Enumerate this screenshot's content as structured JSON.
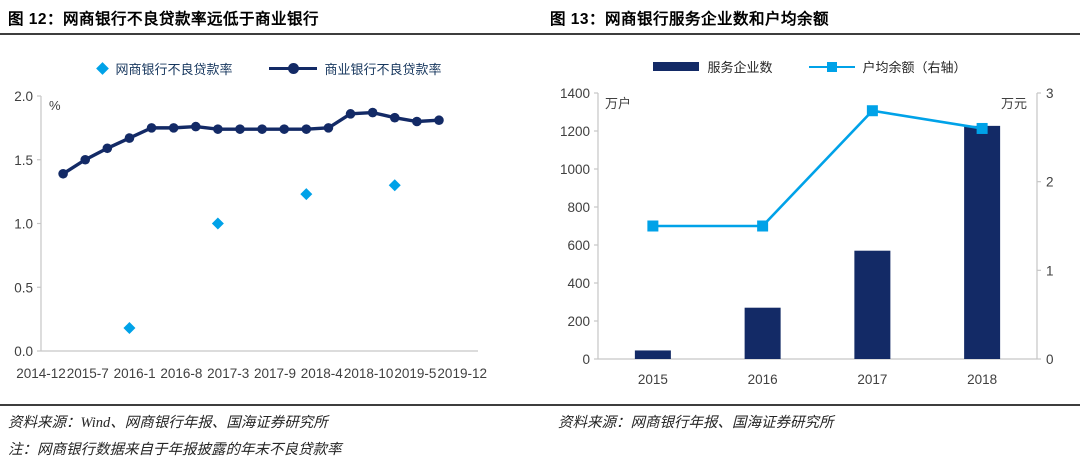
{
  "colors": {
    "navy": "#132A66",
    "cyan": "#00A2E8",
    "axis_text": "#404040",
    "axis_line": "#C6C6C6",
    "rule": "#3d3d3d",
    "legend_text_left": "#17375E",
    "legend_text_right": "#262626"
  },
  "panels": {
    "left": {
      "title": "图 12：网商银行不良贷款率远低于商业银行",
      "legend": [
        {
          "label": "网商银行不良贷款率",
          "swatch": "diamond"
        },
        {
          "label": "商业银行不良贷款率",
          "swatch": "line-dot"
        }
      ],
      "unit_label": "%",
      "source": "资料来源：Wind、网商银行年报、国海证券研究所",
      "note": "注：网商银行数据来自于年报披露的年末不良贷款率"
    },
    "right": {
      "title": "图 13：网商银行服务企业数和户均余额",
      "legend": [
        {
          "label": "服务企业数",
          "swatch": "bar"
        },
        {
          "label": "户均余额（右轴）",
          "swatch": "line-square"
        }
      ],
      "left_unit_label": "万户",
      "right_unit_label": "万元",
      "source": "资料来源：网商银行年报、国海证券研究所"
    }
  },
  "chart_data": [
    {
      "id": "npl-comparison",
      "type": "line",
      "title": "图 12：网商银行不良贷款率远低于商业银行",
      "ylabel": "%",
      "ylim": [
        0.0,
        2.0
      ],
      "yticks": [
        0.0,
        0.5,
        1.0,
        1.5,
        2.0
      ],
      "xticks": [
        "2014-12",
        "2015-7",
        "2016-1",
        "2016-8",
        "2017-3",
        "2017-9",
        "2018-4",
        "2018-10",
        "2019-5",
        "2019-12"
      ],
      "grid": false,
      "legend_position": "top",
      "series": [
        {
          "name": "网商银行不良贷款率",
          "type": "scatter",
          "marker": "diamond",
          "axis": "left",
          "points": [
            {
              "date": "2015-12",
              "value": 0.18
            },
            {
              "date": "2016-12",
              "value": 1.0
            },
            {
              "date": "2017-12",
              "value": 1.23
            },
            {
              "date": "2018-12",
              "value": 1.3
            }
          ]
        },
        {
          "name": "商业银行不良贷款率",
          "type": "line",
          "marker": "circle",
          "axis": "left",
          "points": [
            {
              "date": "2015-03",
              "value": 1.39
            },
            {
              "date": "2015-06",
              "value": 1.5
            },
            {
              "date": "2015-09",
              "value": 1.59
            },
            {
              "date": "2015-12",
              "value": 1.67
            },
            {
              "date": "2016-03",
              "value": 1.75
            },
            {
              "date": "2016-06",
              "value": 1.75
            },
            {
              "date": "2016-09",
              "value": 1.76
            },
            {
              "date": "2016-12",
              "value": 1.74
            },
            {
              "date": "2017-03",
              "value": 1.74
            },
            {
              "date": "2017-06",
              "value": 1.74
            },
            {
              "date": "2017-09",
              "value": 1.74
            },
            {
              "date": "2017-12",
              "value": 1.74
            },
            {
              "date": "2018-03",
              "value": 1.75
            },
            {
              "date": "2018-06",
              "value": 1.86
            },
            {
              "date": "2018-09",
              "value": 1.87
            },
            {
              "date": "2018-12",
              "value": 1.83
            },
            {
              "date": "2019-03",
              "value": 1.8
            },
            {
              "date": "2019-06",
              "value": 1.81
            }
          ]
        }
      ]
    },
    {
      "id": "mybank-scale",
      "type": "bar",
      "title": "图 13：网商银行服务企业数和户均余额",
      "left_unit": "万户",
      "right_unit": "万元",
      "categories": [
        "2015",
        "2016",
        "2017",
        "2018"
      ],
      "left_ylim": [
        0,
        1400
      ],
      "left_yticks": [
        0,
        200,
        400,
        600,
        800,
        1000,
        1200,
        1400
      ],
      "right_ylim": [
        0,
        3
      ],
      "right_yticks": [
        0,
        1,
        2,
        3
      ],
      "grid": false,
      "legend_position": "top",
      "series": [
        {
          "name": "服务企业数",
          "type": "bar",
          "axis": "left",
          "values": [
            45,
            270,
            570,
            1227
          ]
        },
        {
          "name": "户均余额（右轴）",
          "type": "line",
          "marker": "square",
          "axis": "right",
          "values": [
            1.5,
            1.5,
            2.8,
            2.6
          ]
        }
      ]
    }
  ]
}
